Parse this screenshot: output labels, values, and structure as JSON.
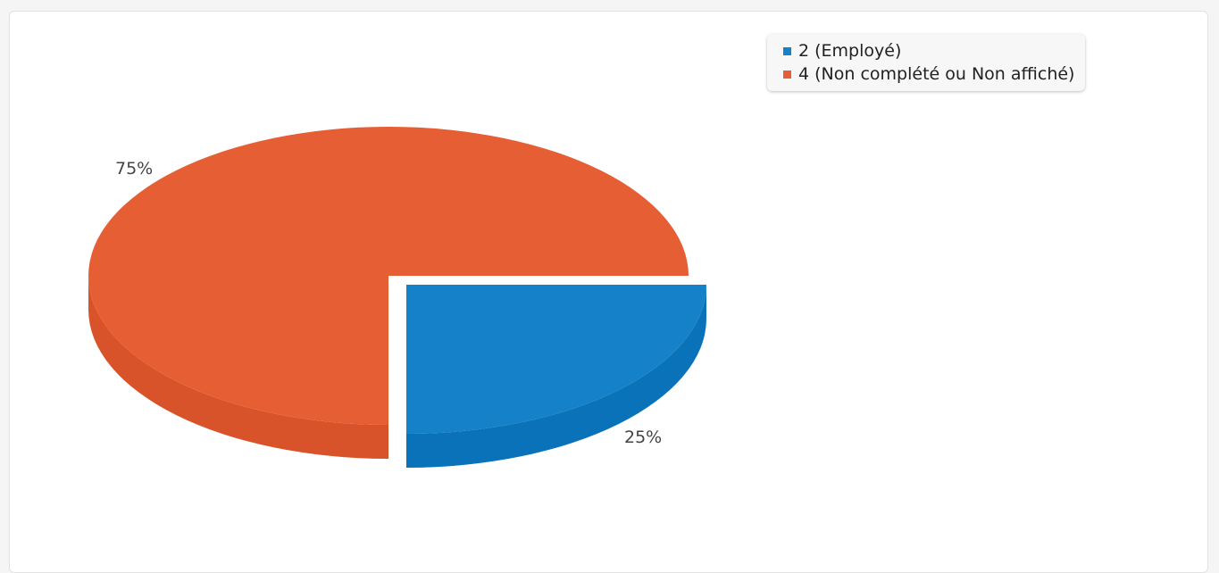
{
  "chart_data": {
    "type": "pie",
    "style": "3d-exploded",
    "title": "",
    "slices": [
      {
        "label": "4 (Non complété ou Non affiché)",
        "value": 75,
        "percent_label": "75%",
        "color": "#e65f34",
        "side_color": "#d9532a"
      },
      {
        "label": "2 (Employé)",
        "value": 25,
        "percent_label": "25%",
        "color": "#1481c8",
        "side_color": "#0a72b8"
      }
    ],
    "legend": {
      "placement": "top-right",
      "items": [
        {
          "label": "2 (Employé)",
          "color": "#1481c8"
        },
        {
          "label": "4 (Non complété ou Non affiché)",
          "color": "#e65f34"
        }
      ]
    }
  }
}
